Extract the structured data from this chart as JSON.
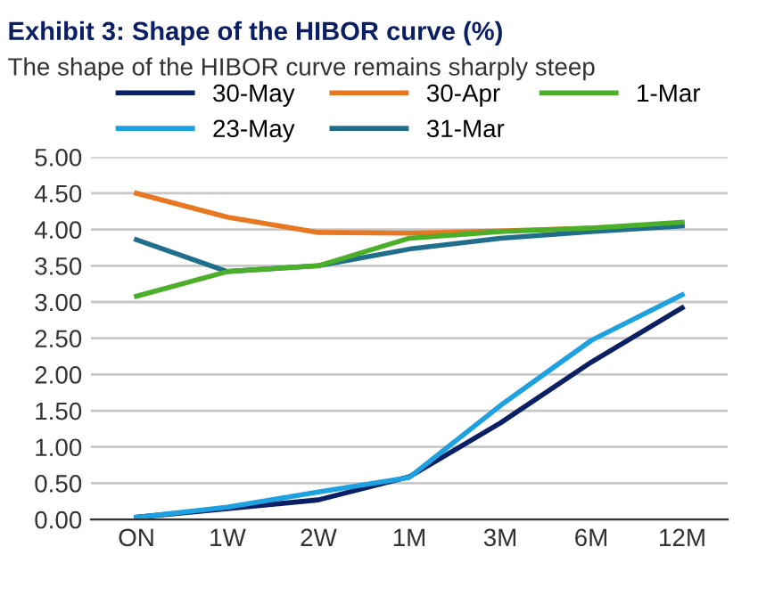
{
  "chart_data": {
    "type": "line",
    "title": "Exhibit 3: Shape of the HIBOR curve (%)",
    "subtitle": "The shape of the HIBOR curve remains sharply steep",
    "categories": [
      "ON",
      "1W",
      "2W",
      "1M",
      "3M",
      "6M",
      "12M"
    ],
    "series": [
      {
        "name": "30-May",
        "color": "#0b1f65",
        "values": [
          0.03,
          0.15,
          0.27,
          0.59,
          1.33,
          2.17,
          2.92
        ]
      },
      {
        "name": "23-May",
        "color": "#1ea1e0",
        "values": [
          0.03,
          0.17,
          0.38,
          0.58,
          1.57,
          2.47,
          3.1
        ]
      },
      {
        "name": "30-Apr",
        "color": "#e87722",
        "values": [
          4.5,
          4.17,
          3.96,
          3.95,
          3.98,
          4.02,
          4.07
        ]
      },
      {
        "name": "31-Mar",
        "color": "#1f6e8c",
        "values": [
          3.86,
          3.42,
          3.5,
          3.73,
          3.88,
          3.97,
          4.05
        ]
      },
      {
        "name": "1-Mar",
        "color": "#4caf2a",
        "values": [
          3.08,
          3.42,
          3.5,
          3.88,
          3.97,
          4.02,
          4.1
        ]
      }
    ],
    "ylim": [
      0,
      5
    ],
    "yticks": [
      {
        "value": 0,
        "label": "0.00"
      },
      {
        "value": 0.5,
        "label": "0.50"
      },
      {
        "value": 1,
        "label": "1.00"
      },
      {
        "value": 1.5,
        "label": "1.50"
      },
      {
        "value": 2,
        "label": "2.00"
      },
      {
        "value": 2.5,
        "label": "2.50"
      },
      {
        "value": 3,
        "label": "3.00"
      },
      {
        "value": 3.5,
        "label": "3.50"
      },
      {
        "value": 4,
        "label": "4.00"
      },
      {
        "value": 4.5,
        "label": "4.50"
      },
      {
        "value": 5,
        "label": "5.00"
      }
    ],
    "grid": "y",
    "legend": "top",
    "marker": "none",
    "line_style": "solid"
  }
}
